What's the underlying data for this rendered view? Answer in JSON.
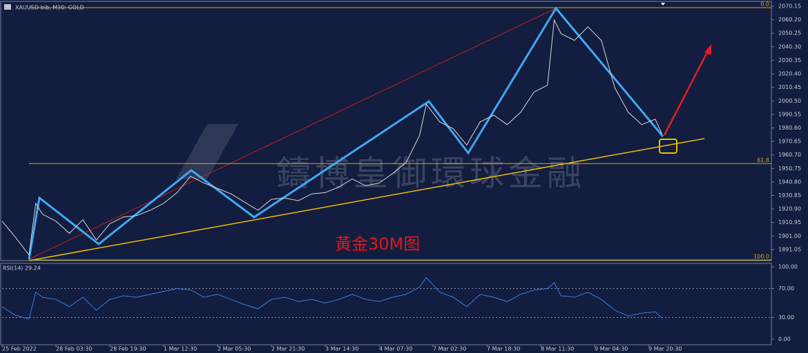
{
  "chart_data": [
    {
      "type": "line",
      "title": "XAUUSD-bib, M30: GOLD",
      "watermark": "鑄博皇御環球金融",
      "annotation": "黃金30M图",
      "xlim": [
        0,
        457
      ],
      "xticks": [
        {
          "value": 0,
          "label": "25 Feb 2022"
        },
        {
          "value": 32,
          "label": "28 Feb 03:30"
        },
        {
          "value": 64,
          "label": "28 Feb 19:30"
        },
        {
          "value": 96,
          "label": "1 Mar 12:30"
        },
        {
          "value": 128,
          "label": "2 Mar 05:30"
        },
        {
          "value": 160,
          "label": "2 Mar 21:30"
        },
        {
          "value": 192,
          "label": "3 Mar 14:30"
        },
        {
          "value": 224,
          "label": "4 Mar 07:30"
        },
        {
          "value": 256,
          "label": "7 Mar 02:30"
        },
        {
          "value": 288,
          "label": "7 Mar 18:30"
        },
        {
          "value": 320,
          "label": "8 Mar 11:30"
        },
        {
          "value": 352,
          "label": "9 Mar 04:30"
        },
        {
          "value": 384,
          "label": "9 Mar 20:30"
        }
      ],
      "ylim": [
        1882.9,
        2073.2
      ],
      "yticks": [
        2070.15,
        {
          "value": 2060.2,
          "label": "2060.20"
        },
        2050.25,
        {
          "value": 2040.3,
          "label": "2040.30"
        },
        2030.35,
        {
          "value": 2020.4,
          "label": "2020.40"
        },
        2010.45,
        {
          "value": 2000.5,
          "label": "2000.50"
        },
        1990.55,
        {
          "value": 1980.6,
          "label": "1980.60"
        },
        1970.65,
        {
          "value": 1960.7,
          "label": "1960.70"
        },
        1950.75,
        {
          "value": 1940.8,
          "label": "1940.80"
        },
        1930.85,
        {
          "value": 1920.9,
          "label": "1920.90"
        },
        1910.95,
        {
          "value": 1901.0,
          "label": "1901.00"
        },
        1891.05
      ],
      "fib_levels": [
        {
          "value": 2069.1,
          "label": "0.0"
        },
        {
          "value": 1954.3,
          "label": "61.8"
        },
        {
          "value": 1883.4,
          "label": "100.0"
        }
      ],
      "series": [
        {
          "name": "XAUUSD",
          "color": "#d8d8d8",
          "x": [
            0,
            8,
            16,
            20,
            24,
            32,
            40,
            48,
            56,
            64,
            72,
            80,
            88,
            96,
            104,
            112,
            120,
            128,
            136,
            144,
            152,
            160,
            168,
            176,
            184,
            192,
            200,
            208,
            216,
            224,
            232,
            240,
            248,
            252,
            260,
            268,
            276,
            284,
            292,
            300,
            308,
            316,
            324,
            328,
            332,
            340,
            348,
            356,
            364,
            372,
            380,
            388,
            392
          ],
          "values": [
            1912,
            1900,
            1887,
            1925,
            1917,
            1912,
            1903,
            1913,
            1898,
            1910,
            1915,
            1916,
            1920,
            1925,
            1933,
            1945,
            1940,
            1936,
            1932,
            1926,
            1920,
            1928,
            1929,
            1927,
            1932,
            1933,
            1937,
            1943,
            1938,
            1940,
            1947,
            1955,
            1975,
            1998,
            1985,
            1980,
            1968,
            1985,
            1990,
            1983,
            1992,
            2007,
            2012,
            2060,
            2050,
            2045,
            2055,
            2045,
            2010,
            1992,
            1983,
            1987,
            1976
          ]
        }
      ]
    },
    {
      "type": "line",
      "title": "RSI(14) 29.24",
      "xlim": [
        0,
        457
      ],
      "ylim": [
        -7.6,
        103.8
      ],
      "yticks": [
        {
          "value": 100,
          "label": "100.00"
        },
        {
          "value": 70,
          "label": "70.00"
        },
        {
          "value": 30,
          "label": "30.00"
        },
        {
          "value": 0,
          "label": "0.00"
        }
      ],
      "levels": [
        70,
        30
      ],
      "series": [
        {
          "name": "RSI",
          "color": "#3a7ee0",
          "x": [
            0,
            8,
            16,
            20,
            24,
            32,
            40,
            48,
            56,
            64,
            72,
            80,
            88,
            96,
            104,
            112,
            120,
            128,
            136,
            144,
            152,
            160,
            168,
            176,
            184,
            192,
            200,
            208,
            216,
            224,
            232,
            240,
            248,
            252,
            260,
            268,
            276,
            284,
            292,
            300,
            308,
            316,
            324,
            328,
            332,
            340,
            348,
            356,
            364,
            372,
            380,
            388,
            392
          ],
          "values": [
            45,
            33,
            28,
            65,
            58,
            55,
            45,
            58,
            40,
            55,
            60,
            58,
            62,
            66,
            70,
            68,
            58,
            62,
            55,
            48,
            42,
            55,
            58,
            52,
            55,
            50,
            55,
            62,
            55,
            52,
            58,
            62,
            72,
            85,
            65,
            58,
            45,
            62,
            58,
            52,
            62,
            68,
            70,
            78,
            60,
            58,
            65,
            55,
            40,
            32,
            36,
            38,
            29.24
          ]
        }
      ]
    }
  ]
}
